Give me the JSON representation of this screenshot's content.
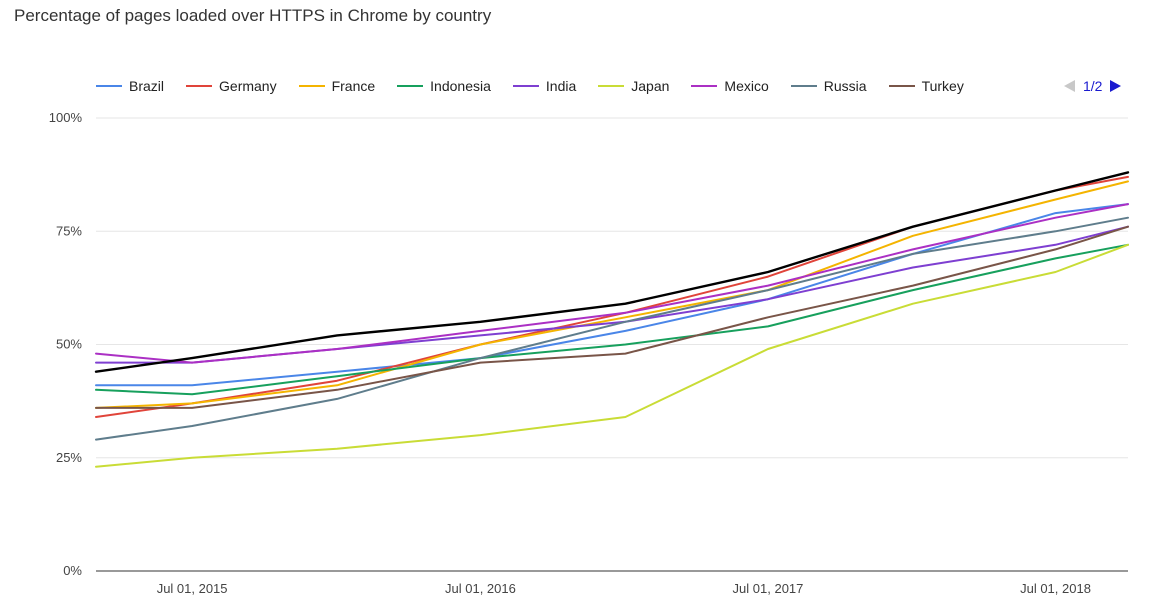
{
  "chart_data": {
    "type": "line",
    "title": "Percentage of pages loaded over HTTPS in Chrome by country",
    "x": [
      "2015-03",
      "2015-07",
      "2016-01",
      "2016-07",
      "2017-01",
      "2017-07",
      "2018-01",
      "2018-07",
      "2018-10"
    ],
    "xticks": [
      "Jul 01, 2015",
      "Jul 01, 2016",
      "Jul 01, 2017",
      "Jul 01, 2018"
    ],
    "yticks": [
      "0%",
      "25%",
      "50%",
      "75%",
      "100%"
    ],
    "ylim": [
      0,
      100
    ],
    "legend_position": "top",
    "pager": "1/2",
    "series": [
      {
        "name": "Brazil",
        "color": "#4a86e8",
        "values": [
          41,
          41,
          44,
          47,
          53,
          60,
          70,
          79,
          81
        ]
      },
      {
        "name": "Germany",
        "color": "#e0443a",
        "values": [
          34,
          37,
          42,
          50,
          57,
          65,
          76,
          84,
          87
        ]
      },
      {
        "name": "France",
        "color": "#f4b400",
        "values": [
          36,
          37,
          41,
          50,
          56,
          62,
          74,
          82,
          86
        ]
      },
      {
        "name": "Indonesia",
        "color": "#17a05d",
        "values": [
          40,
          39,
          43,
          47,
          50,
          54,
          62,
          69,
          72
        ]
      },
      {
        "name": "India",
        "color": "#7e3fd1",
        "values": [
          46,
          46,
          49,
          52,
          55,
          60,
          67,
          72,
          76
        ]
      },
      {
        "name": "Japan",
        "color": "#c9dc36",
        "values": [
          23,
          25,
          27,
          30,
          34,
          49,
          59,
          66,
          72
        ]
      },
      {
        "name": "Mexico",
        "color": "#ab30c4",
        "values": [
          48,
          46,
          49,
          53,
          57,
          63,
          71,
          78,
          81
        ]
      },
      {
        "name": "Russia",
        "color": "#5f7d8c",
        "values": [
          29,
          32,
          38,
          47,
          55,
          62,
          70,
          75,
          78
        ]
      },
      {
        "name": "Turkey",
        "color": "#795548",
        "values": [
          36,
          36,
          40,
          46,
          48,
          56,
          63,
          71,
          76
        ]
      },
      {
        "color": "#000000",
        "values": [
          44,
          47,
          52,
          55,
          59,
          66,
          76,
          84,
          88
        ]
      }
    ]
  }
}
